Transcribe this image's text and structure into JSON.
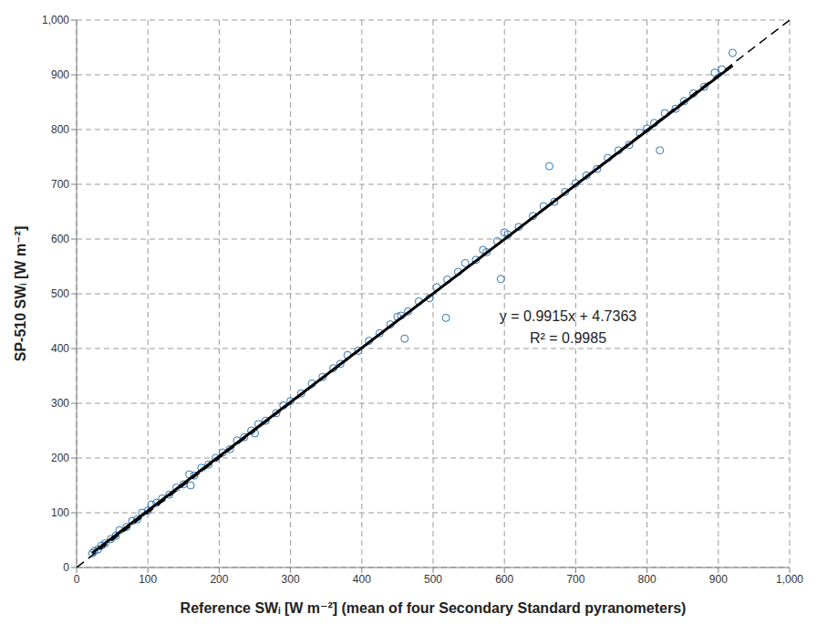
{
  "chart_data": {
    "type": "scatter",
    "x_label": "Reference SWᵢ [W m⁻²] (mean of four Secondary Standard pyranometers)",
    "y_label": "SP-510 SWᵢ [W m⁻²]",
    "xlim": [
      0,
      1000
    ],
    "ylim": [
      0,
      1000
    ],
    "xticks": [
      0,
      100,
      200,
      300,
      400,
      500,
      600,
      700,
      800,
      900,
      {
        "value": 1000,
        "label": "1,000"
      }
    ],
    "yticks": [
      0,
      100,
      200,
      300,
      400,
      500,
      600,
      700,
      800,
      900,
      {
        "value": 1000,
        "label": "1,000"
      }
    ],
    "grid": true,
    "annotations": [
      "y = 0.9915x + 4.7363",
      "R² = 0.9985"
    ],
    "series": [
      {
        "type": "scatter",
        "color": "#2e75b6",
        "marker": "circle_open",
        "x": [
          22,
          25,
          30,
          35,
          40,
          48,
          55,
          60,
          70,
          78,
          85,
          92,
          100,
          105,
          112,
          120,
          130,
          140,
          150,
          158,
          165,
          175,
          185,
          195,
          205,
          215,
          225,
          235,
          245,
          255,
          265,
          280,
          290,
          300,
          315,
          330,
          345,
          360,
          370,
          380,
          395,
          410,
          425,
          440,
          450,
          465,
          480,
          495,
          505,
          518,
          520,
          535,
          545,
          560,
          570,
          575,
          590,
          595,
          605,
          620,
          640,
          655,
          663,
          670,
          685,
          700,
          715,
          730,
          745,
          760,
          775,
          790,
          800,
          810,
          818,
          825,
          840,
          852,
          865,
          880,
          895,
          905,
          920,
          460,
          455,
          250,
          160,
          600
        ],
        "values": [
          26,
          30,
          33,
          40,
          44,
          52,
          58,
          68,
          74,
          85,
          88,
          100,
          104,
          115,
          118,
          126,
          133,
          146,
          152,
          170,
          168,
          182,
          188,
          200,
          210,
          216,
          232,
          238,
          250,
          262,
          268,
          282,
          296,
          304,
          318,
          336,
          348,
          364,
          372,
          388,
          396,
          414,
          428,
          444,
          458,
          468,
          486,
          492,
          512,
          456,
          526,
          540,
          556,
          562,
          580,
          576,
          596,
          527,
          608,
          622,
          642,
          660,
          733,
          668,
          686,
          702,
          716,
          728,
          748,
          762,
          772,
          794,
          802,
          812,
          762,
          830,
          838,
          852,
          866,
          878,
          904,
          910,
          940,
          418,
          460,
          245,
          150,
          612
        ]
      },
      {
        "type": "line",
        "color": "#000000",
        "line_style": "solid",
        "x": [
          22,
          920
        ],
        "values": [
          26.55,
          916.92
        ]
      },
      {
        "type": "line",
        "color": "#000000",
        "line_style": "dashed",
        "x": [
          0,
          1000
        ],
        "values": [
          0,
          1000
        ]
      }
    ]
  }
}
